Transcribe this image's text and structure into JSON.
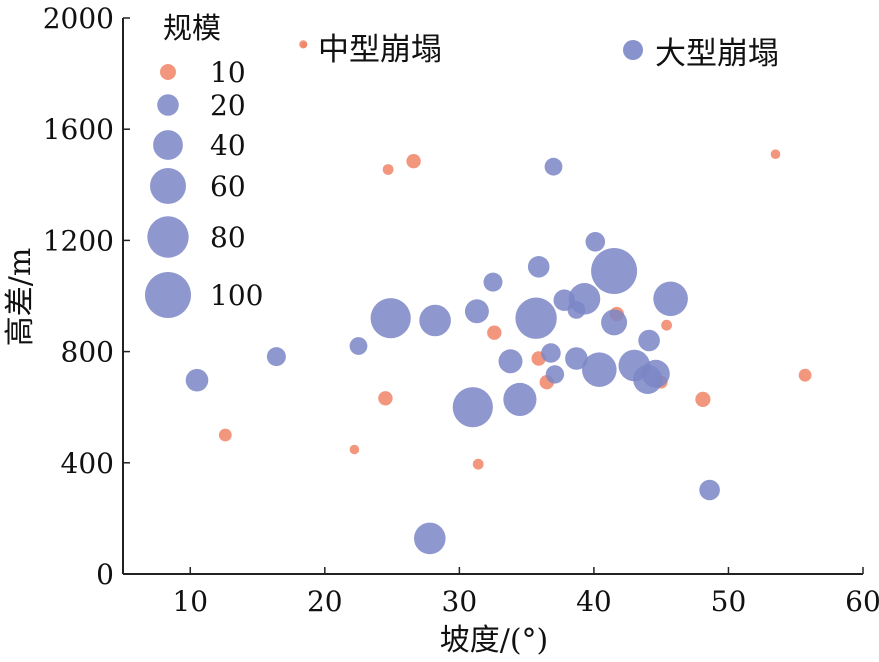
{
  "chart_data": {
    "type": "scatter",
    "xlabel": "坡度/(°)",
    "ylabel": "高差/m",
    "xlim": [
      5,
      60
    ],
    "ylim": [
      0,
      2000
    ],
    "xticks": [
      10,
      20,
      30,
      40,
      50,
      60
    ],
    "yticks": [
      0,
      400,
      800,
      1200,
      1600,
      2000
    ],
    "size_legend": {
      "title": "规模",
      "entries": [
        {
          "label": "10",
          "value": 10
        },
        {
          "label": "20",
          "value": 20
        },
        {
          "label": "40",
          "value": 40
        },
        {
          "label": "60",
          "value": 60
        },
        {
          "label": "80",
          "value": 80
        },
        {
          "label": "100",
          "value": 100
        }
      ]
    },
    "legend_placement": "top",
    "series": [
      {
        "name": "中型崩塌",
        "color": "#f08566",
        "points": [
          {
            "x": 18.4,
            "y": 1905,
            "size": 2
          },
          {
            "x": 12.6,
            "y": 500,
            "size": 6
          },
          {
            "x": 22.2,
            "y": 448,
            "size": 3
          },
          {
            "x": 24.5,
            "y": 632,
            "size": 8
          },
          {
            "x": 24.7,
            "y": 1455,
            "size": 4
          },
          {
            "x": 26.6,
            "y": 1485,
            "size": 8
          },
          {
            "x": 31.4,
            "y": 395,
            "size": 4
          },
          {
            "x": 32.6,
            "y": 868,
            "size": 8
          },
          {
            "x": 35.9,
            "y": 775,
            "size": 8
          },
          {
            "x": 36.5,
            "y": 690,
            "size": 8
          },
          {
            "x": 41.7,
            "y": 935,
            "size": 8
          },
          {
            "x": 45.0,
            "y": 690,
            "size": 6
          },
          {
            "x": 45.4,
            "y": 895,
            "size": 4
          },
          {
            "x": 48.1,
            "y": 628,
            "size": 9
          },
          {
            "x": 53.5,
            "y": 1510,
            "size": 3
          },
          {
            "x": 55.7,
            "y": 715,
            "size": 6
          }
        ]
      },
      {
        "name": "大型崩塌",
        "color": "#7b86c6",
        "points": [
          {
            "x": 10.5,
            "y": 697,
            "size": 22
          },
          {
            "x": 16.4,
            "y": 782,
            "size": 15
          },
          {
            "x": 22.5,
            "y": 820,
            "size": 13
          },
          {
            "x": 24.9,
            "y": 920,
            "size": 75
          },
          {
            "x": 27.8,
            "y": 128,
            "size": 45
          },
          {
            "x": 28.2,
            "y": 912,
            "size": 45
          },
          {
            "x": 31.0,
            "y": 600,
            "size": 75
          },
          {
            "x": 31.3,
            "y": 945,
            "size": 25
          },
          {
            "x": 32.5,
            "y": 1050,
            "size": 15
          },
          {
            "x": 33.8,
            "y": 765,
            "size": 25
          },
          {
            "x": 34.5,
            "y": 628,
            "size": 50
          },
          {
            "x": 35.7,
            "y": 920,
            "size": 80
          },
          {
            "x": 35.9,
            "y": 1105,
            "size": 20
          },
          {
            "x": 36.8,
            "y": 795,
            "size": 16
          },
          {
            "x": 37.0,
            "y": 1465,
            "size": 13
          },
          {
            "x": 37.1,
            "y": 718,
            "size": 14
          },
          {
            "x": 37.8,
            "y": 985,
            "size": 20
          },
          {
            "x": 38.7,
            "y": 950,
            "size": 13
          },
          {
            "x": 38.7,
            "y": 775,
            "size": 22
          },
          {
            "x": 39.3,
            "y": 990,
            "size": 45
          },
          {
            "x": 40.1,
            "y": 1195,
            "size": 16
          },
          {
            "x": 40.4,
            "y": 735,
            "size": 55
          },
          {
            "x": 41.5,
            "y": 905,
            "size": 30
          },
          {
            "x": 41.5,
            "y": 1090,
            "size": 100
          },
          {
            "x": 43.0,
            "y": 750,
            "size": 45
          },
          {
            "x": 44.0,
            "y": 700,
            "size": 38
          },
          {
            "x": 44.1,
            "y": 840,
            "size": 20
          },
          {
            "x": 44.6,
            "y": 720,
            "size": 35
          },
          {
            "x": 45.7,
            "y": 990,
            "size": 55
          },
          {
            "x": 48.6,
            "y": 302,
            "size": 18
          }
        ]
      }
    ]
  }
}
